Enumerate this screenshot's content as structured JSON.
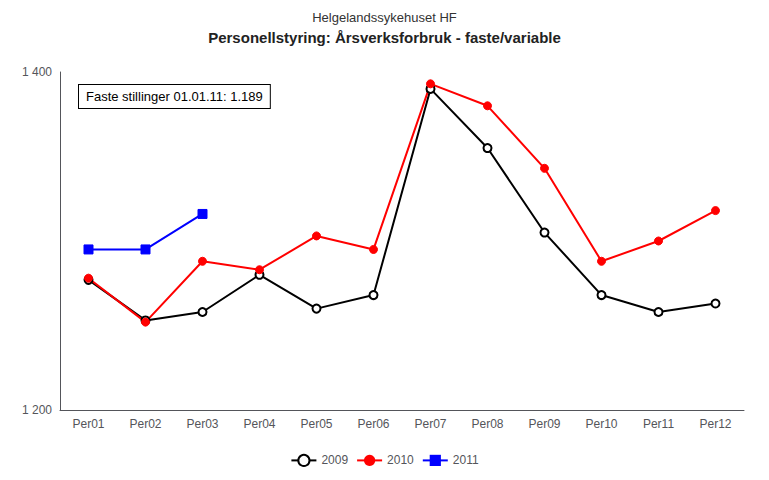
{
  "chart_data": {
    "type": "line",
    "title": "Helgelandssykehuset HF",
    "subtitle": "Personellstyring: Årsverksforbruk - faste/variable",
    "annotation": "Faste stillinger 01.01.11: 1.189",
    "categories": [
      "Per01",
      "Per02",
      "Per03",
      "Per04",
      "Per05",
      "Per06",
      "Per07",
      "Per08",
      "Per09",
      "Per10",
      "Per11",
      "Per12"
    ],
    "series": [
      {
        "name": "2009",
        "color": "#000000",
        "marker": "open circle",
        "values": [
          1277,
          1253,
          1258,
          1280,
          1260,
          1268,
          1390,
          1355,
          1305,
          1268,
          1258,
          1263
        ]
      },
      {
        "name": "2010",
        "color": "#ff0000",
        "marker": "circle",
        "values": [
          1278,
          1252,
          1288,
          1283,
          1303,
          1295,
          1393,
          1380,
          1343,
          1288,
          1300,
          1318
        ]
      },
      {
        "name": "2011",
        "color": "#0000ff",
        "marker": "square",
        "values": [
          1295,
          1295,
          1316,
          null,
          null,
          null,
          null,
          null,
          null,
          null,
          null,
          null
        ]
      }
    ],
    "ylim": [
      1200,
      1400
    ],
    "yticks": [
      {
        "value": 1200,
        "label": "1 200"
      },
      {
        "value": 1400,
        "label": "1 400"
      }
    ],
    "grid": false,
    "legend": "bottom"
  }
}
